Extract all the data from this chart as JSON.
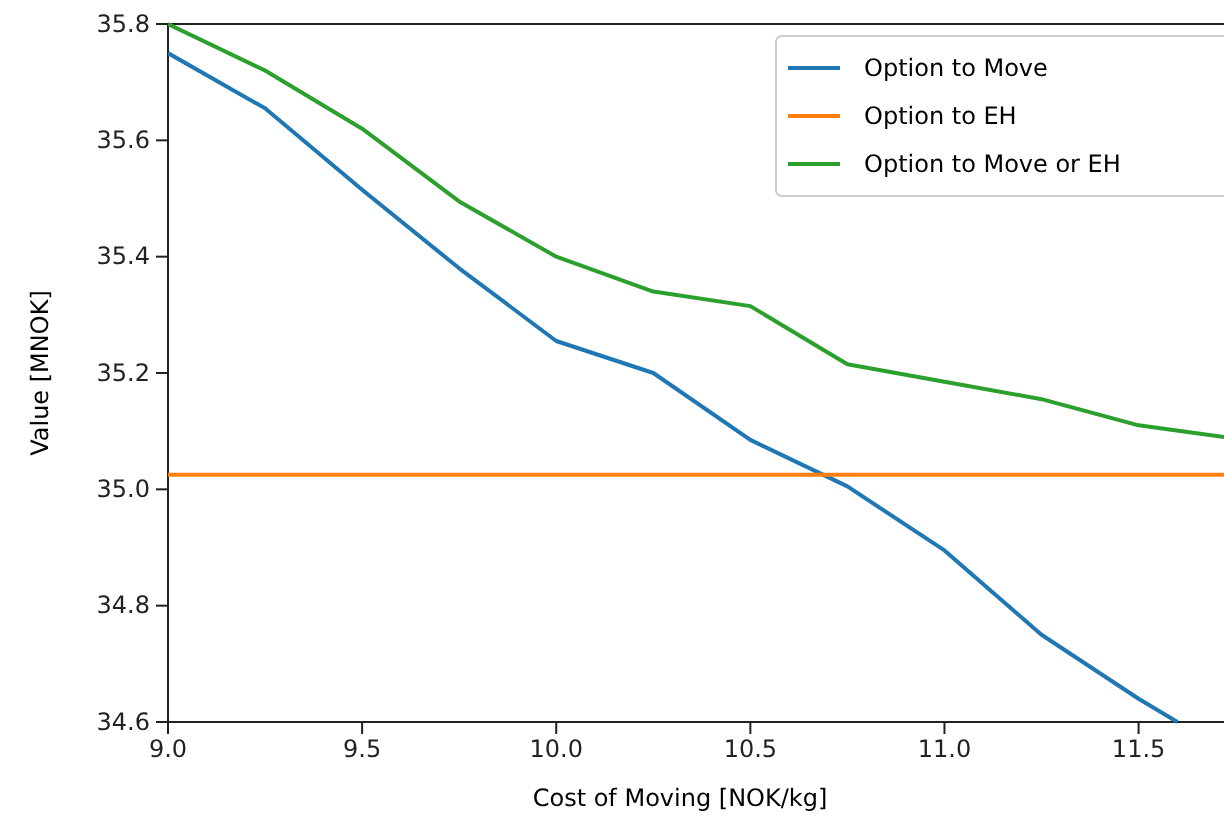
{
  "chart_data": {
    "type": "line",
    "xlabel": "Cost of Moving [NOK/kg]",
    "ylabel": "Value [MNOK]",
    "xlim": [
      9.0,
      11.72
    ],
    "xticks": [
      {
        "value": 9,
        "label": "9.0"
      },
      {
        "value": 9.5,
        "label": "9.5"
      },
      {
        "value": 10,
        "label": "10.0"
      },
      {
        "value": 10.5,
        "label": "10.5"
      },
      {
        "value": 11,
        "label": "11.0"
      },
      {
        "value": 11.5,
        "label": "11.5"
      }
    ],
    "ylim": [
      34.6,
      35.8
    ],
    "yticks": [
      {
        "value": 34.6,
        "label": "34.6"
      },
      {
        "value": 34.8,
        "label": "34.8"
      },
      {
        "value": 35,
        "label": "35.0"
      },
      {
        "value": 35.2,
        "label": "35.2"
      },
      {
        "value": 35.4,
        "label": "35.4"
      },
      {
        "value": 35.6,
        "label": "35.6"
      },
      {
        "value": 35.8,
        "label": "35.8"
      }
    ],
    "legend": "top right",
    "grid": false,
    "series": [
      {
        "name": "Option to Move",
        "color": "#1f77b4",
        "x": [
          9.0,
          9.25,
          9.5,
          9.75,
          10.0,
          10.25,
          10.5,
          10.75,
          11.0,
          11.25,
          11.5,
          11.6
        ],
        "values": [
          35.75,
          35.655,
          35.515,
          35.38,
          35.255,
          35.2,
          35.085,
          35.005,
          34.895,
          34.75,
          34.64,
          34.6
        ]
      },
      {
        "name": "Option to EH",
        "color": "#ff7f0e",
        "x": [
          9.0,
          11.72
        ],
        "values": [
          35.025,
          35.025
        ]
      },
      {
        "name": "Option to Move or EH",
        "color": "#2ca02c",
        "x": [
          9.0,
          9.25,
          9.5,
          9.75,
          10.0,
          10.25,
          10.5,
          10.75,
          11.0,
          11.25,
          11.5,
          11.72
        ],
        "values": [
          35.8,
          35.72,
          35.62,
          35.495,
          35.4,
          35.34,
          35.315,
          35.215,
          35.185,
          35.155,
          35.11,
          35.09
        ]
      }
    ]
  }
}
